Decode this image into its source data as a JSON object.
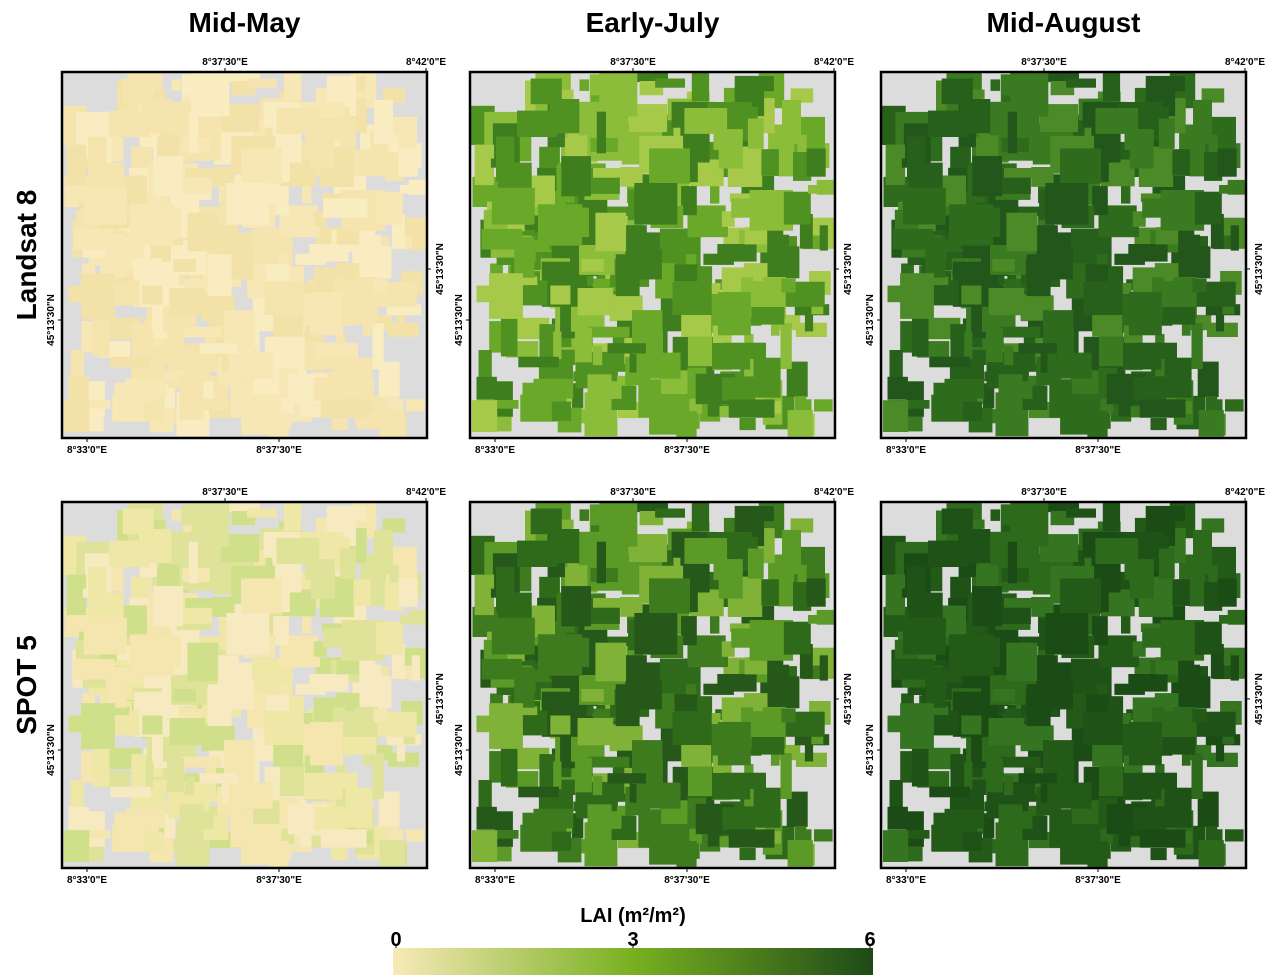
{
  "columns": [
    "Mid-May",
    "Early-July",
    "Mid-August"
  ],
  "rows": [
    "Landsat 8",
    "SPOT 5"
  ],
  "coordinates": {
    "top": [
      "8°37'30\"E",
      "8°42'0\"E"
    ],
    "bottom": [
      "8°33'0\"E",
      "8°37'30\"E"
    ],
    "left": "45°13'30\"N",
    "right": "45°13'30\"N"
  },
  "colorbar": {
    "label": "LAI (m²/m²)",
    "ticks": [
      0,
      3,
      6
    ]
  }
}
